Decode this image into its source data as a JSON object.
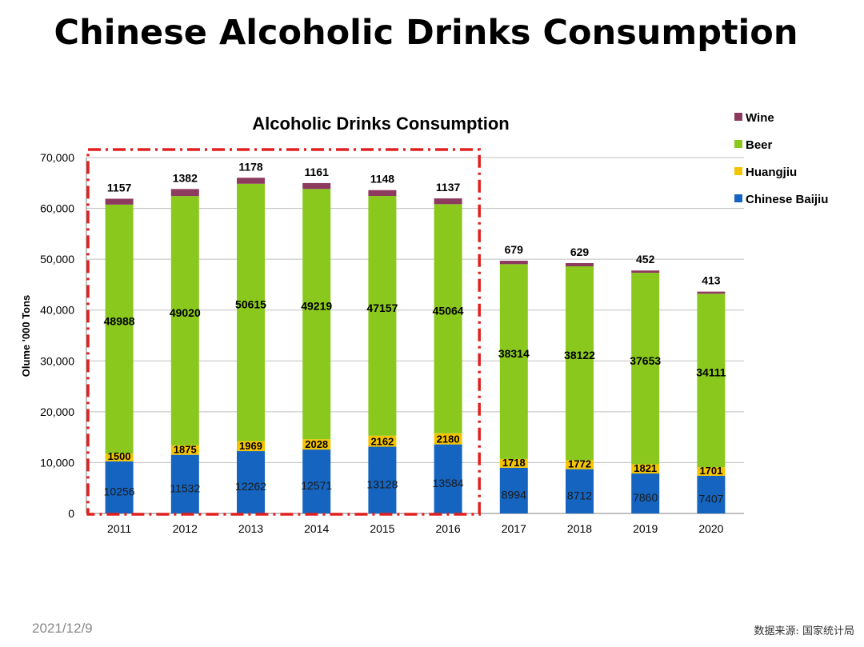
{
  "page": {
    "title": "Chinese Alcoholic Drinks Consumption",
    "date": "2021/12/9",
    "source": "数据来源: 国家统计局"
  },
  "chart_data": {
    "type": "bar",
    "stacked": true,
    "title": "Alcoholic Drinks Consumption",
    "ylabel": "Olume '000 Tons",
    "xlabel": "",
    "ylim": [
      0,
      70000
    ],
    "yticks": [
      0,
      10000,
      20000,
      30000,
      40000,
      50000,
      60000,
      70000
    ],
    "ytick_labels": [
      "0",
      "10,000",
      "20,000",
      "30,000",
      "40,000",
      "50,000",
      "60,000",
      "70,000"
    ],
    "grid": true,
    "legend_position": "top-right",
    "categories": [
      "2011",
      "2012",
      "2013",
      "2014",
      "2015",
      "2016",
      "2017",
      "2018",
      "2019",
      "2020"
    ],
    "series": [
      {
        "name": "Chinese Baijiu",
        "color": "#1565C0",
        "values": [
          10256,
          11532,
          12262,
          12571,
          13128,
          13584,
          8994,
          8712,
          7860,
          7407
        ]
      },
      {
        "name": "Huangjiu",
        "color": "#F5C400",
        "values": [
          1500,
          1875,
          1969,
          2028,
          2162,
          2180,
          1718,
          1772,
          1821,
          1701
        ]
      },
      {
        "name": "Beer",
        "color": "#8BC81E",
        "values": [
          48988,
          49020,
          50615,
          49219,
          47157,
          45064,
          38314,
          38122,
          37653,
          34111
        ]
      },
      {
        "name": "Wine",
        "color": "#8C3A5E",
        "values": [
          1157,
          1382,
          1178,
          1161,
          1148,
          1137,
          679,
          629,
          452,
          413
        ]
      }
    ],
    "highlight_box_color": "#E02020",
    "highlight_categories": [
      "2011",
      "2012",
      "2013",
      "2014",
      "2015",
      "2016"
    ]
  }
}
